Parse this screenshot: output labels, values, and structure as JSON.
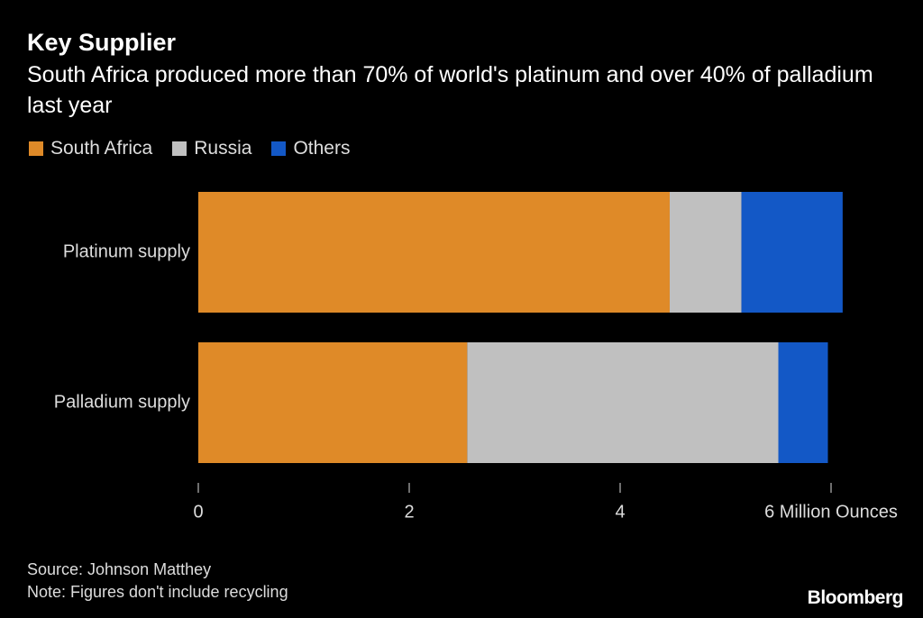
{
  "chart_data": {
    "type": "stacked-bar-horizontal",
    "title": "Key Supplier",
    "subtitle": "South Africa produced more than 70% of world's platinum and over 40% of palladium last year",
    "categories": [
      "Platinum supply",
      "Palladium supply"
    ],
    "series": [
      {
        "name": "South Africa",
        "color": "#df8a28",
        "values": [
          4.47,
          2.55
        ]
      },
      {
        "name": "Russia",
        "color": "#c0c0c0",
        "values": [
          0.68,
          2.95
        ]
      },
      {
        "name": "Others",
        "color": "#1358c6",
        "values": [
          0.96,
          0.47
        ]
      }
    ],
    "xlim": [
      0,
      6.2
    ],
    "xticks": [
      0,
      2,
      4,
      {
        "value": 6,
        "label": "6 Million Ounces"
      }
    ],
    "source": "Source: Johnson Matthey",
    "note": "Note: Figures don't include recycling",
    "brand": "Bloomberg"
  }
}
